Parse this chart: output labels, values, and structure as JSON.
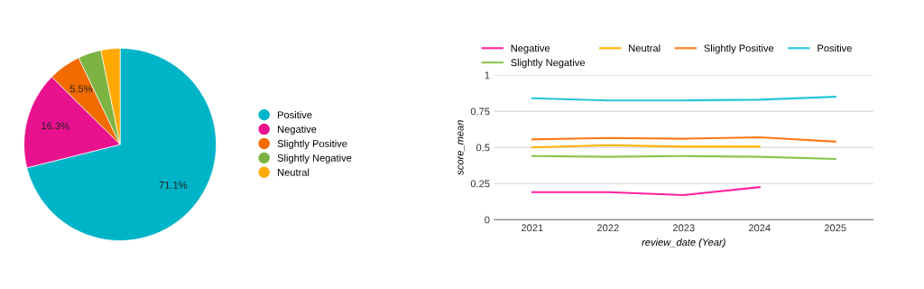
{
  "chart_data": [
    {
      "type": "pie",
      "categories": [
        "Positive",
        "Negative",
        "Slightly Positive",
        "Slightly Negative",
        "Neutral"
      ],
      "values": [
        71.1,
        16.3,
        5.5,
        3.9,
        3.2
      ],
      "colors": [
        "#00b4c8",
        "#e8118e",
        "#f26b00",
        "#7cb342",
        "#ffa800"
      ],
      "value_labels": [
        "71.1%",
        "16.3%",
        "5.5%",
        null,
        null
      ],
      "legend": "right"
    },
    {
      "type": "line",
      "xlabel": "review_date (Year)",
      "ylabel": "score_mean",
      "categories": [
        "2021",
        "2022",
        "2023",
        "2024",
        "2025"
      ],
      "ylim": [
        0,
        1
      ],
      "yticks": [
        0,
        0.25,
        0.5,
        0.75,
        1
      ],
      "grid": "y",
      "legend": "top",
      "marker": "none",
      "series": [
        {
          "name": "Negative",
          "color": "#ff1fa0",
          "values": [
            0.19,
            0.19,
            0.17,
            0.225,
            null
          ]
        },
        {
          "name": "Slightly Negative",
          "color": "#8bc34a",
          "values": [
            0.44,
            0.435,
            0.44,
            0.435,
            0.42
          ]
        },
        {
          "name": "Neutral",
          "color": "#ffb300",
          "values": [
            0.5,
            0.515,
            0.505,
            0.505,
            null
          ]
        },
        {
          "name": "Slightly Positive",
          "color": "#ff7a1a",
          "values": [
            0.555,
            0.565,
            0.56,
            0.57,
            0.54
          ]
        },
        {
          "name": "Positive",
          "color": "#26c6da",
          "values": [
            0.84,
            0.825,
            0.825,
            0.83,
            0.85
          ]
        }
      ]
    }
  ]
}
